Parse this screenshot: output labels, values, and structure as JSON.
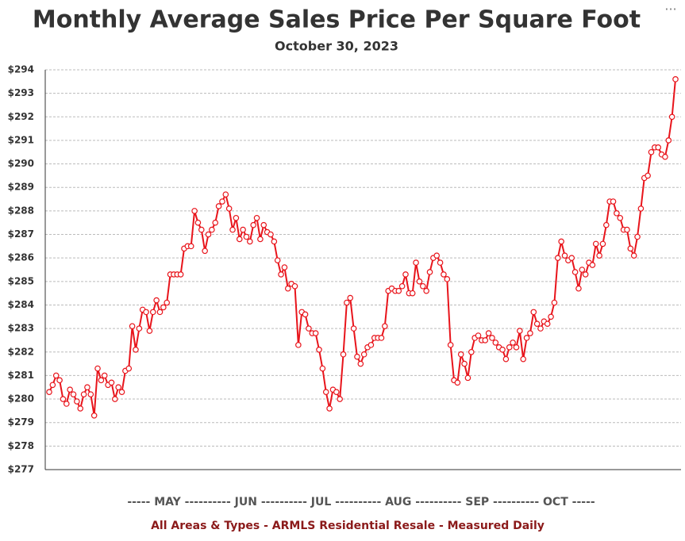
{
  "chart_data": {
    "type": "line",
    "title": "Monthly Average Sales Price Per Square Foot",
    "subtitle": "October 30, 2023",
    "x_axis_label": "----- MAY ---------- JUN ---------- JUL ---------- AUG ---------- SEP ---------- OCT -----",
    "footer": "All Areas & Types - ARMLS Residential Resale - Measured Daily",
    "menu": "...",
    "ylim": [
      277,
      294
    ],
    "yticks": [
      {
        "value": 277,
        "label": "$277"
      },
      {
        "value": 278,
        "label": "$278"
      },
      {
        "value": 279,
        "label": "$279"
      },
      {
        "value": 280,
        "label": "$280"
      },
      {
        "value": 281,
        "label": "$281"
      },
      {
        "value": 282,
        "label": "$282"
      },
      {
        "value": 283,
        "label": "$283"
      },
      {
        "value": 284,
        "label": "$284"
      },
      {
        "value": 285,
        "label": "$285"
      },
      {
        "value": 286,
        "label": "$286"
      },
      {
        "value": 287,
        "label": "$287"
      },
      {
        "value": 288,
        "label": "$288"
      },
      {
        "value": 289,
        "label": "$289"
      },
      {
        "value": 290,
        "label": "$290"
      },
      {
        "value": 291,
        "label": "$291"
      },
      {
        "value": 292,
        "label": "$292"
      },
      {
        "value": 293,
        "label": "$293"
      },
      {
        "value": 294,
        "label": "$294"
      }
    ],
    "grid": true,
    "series": [
      {
        "color": "#e8141b",
        "values": [
          280.3,
          280.6,
          281.0,
          280.8,
          280.0,
          279.8,
          280.4,
          280.2,
          279.9,
          279.6,
          280.2,
          280.5,
          280.2,
          279.3,
          281.3,
          280.8,
          281.0,
          280.6,
          280.7,
          280.0,
          280.5,
          280.3,
          281.2,
          281.3,
          283.1,
          282.1,
          283.0,
          283.8,
          283.7,
          282.9,
          283.7,
          284.2,
          283.7,
          283.9,
          284.1,
          285.3,
          285.3,
          285.3,
          285.3,
          286.4,
          286.5,
          286.5,
          288.0,
          287.5,
          287.2,
          286.3,
          287.0,
          287.2,
          287.5,
          288.2,
          288.4,
          288.7,
          288.1,
          287.2,
          287.7,
          286.8,
          287.2,
          286.9,
          286.7,
          287.4,
          287.7,
          286.8,
          287.4,
          287.1,
          287.0,
          286.7,
          285.9,
          285.3,
          285.6,
          284.7,
          284.9,
          284.8,
          282.3,
          283.7,
          283.6,
          283.0,
          282.8,
          282.8,
          282.1,
          281.3,
          280.3,
          279.6,
          280.4,
          280.3,
          280.0,
          281.9,
          284.1,
          284.3,
          283.0,
          281.8,
          281.5,
          281.9,
          282.2,
          282.3,
          282.6,
          282.6,
          282.6,
          283.1,
          284.6,
          284.7,
          284.6,
          284.6,
          284.8,
          285.3,
          284.5,
          284.5,
          285.8,
          285.0,
          284.8,
          284.6,
          285.4,
          286.0,
          286.1,
          285.8,
          285.3,
          285.1,
          282.3,
          280.8,
          280.7,
          281.9,
          281.5,
          280.9,
          282.0,
          282.6,
          282.7,
          282.5,
          282.5,
          282.8,
          282.6,
          282.4,
          282.2,
          282.1,
          281.7,
          282.2,
          282.4,
          282.2,
          282.9,
          281.7,
          282.6,
          282.8,
          283.7,
          283.2,
          283.0,
          283.3,
          283.2,
          283.5,
          284.1,
          286.0,
          286.7,
          286.1,
          285.9,
          286.0,
          285.4,
          284.7,
          285.5,
          285.3,
          285.8,
          285.7,
          286.6,
          286.1,
          286.6,
          287.4,
          288.4,
          288.4,
          287.9,
          287.7,
          287.2,
          287.2,
          286.4,
          286.1,
          286.9,
          288.1,
          289.4,
          289.5,
          290.5,
          290.7,
          290.7,
          290.4,
          290.3,
          291.0,
          292.0,
          293.6
        ]
      }
    ]
  }
}
